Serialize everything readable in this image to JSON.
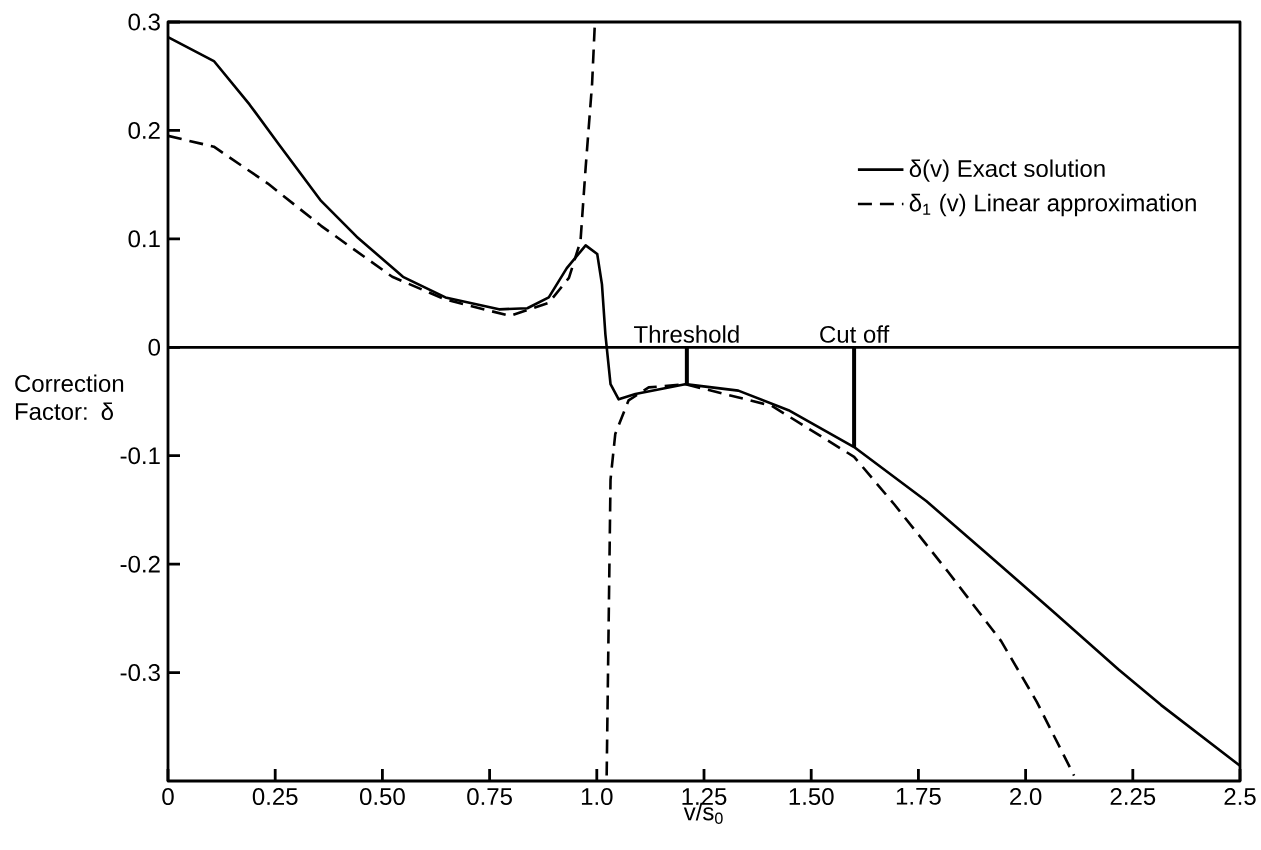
{
  "chart_data": {
    "type": "line",
    "xlabel": "v/s$_{0}$",
    "ylabel": "Correction Factor: δ",
    "xlim": [
      0,
      2.5
    ],
    "ylim": [
      -0.4,
      0.3
    ],
    "xticks": [
      0,
      {
        "value": 0.25,
        "label": "0.25"
      },
      {
        "value": 0.5,
        "label": "0.50"
      },
      {
        "value": 0.75,
        "label": "0.75"
      },
      {
        "value": 1,
        "label": "1.0"
      },
      {
        "value": 1.25,
        "label": "1.25"
      },
      {
        "value": 1.5,
        "label": "1.50"
      },
      {
        "value": 1.75,
        "label": "1.75"
      },
      {
        "value": 2,
        "label": "2.0"
      },
      {
        "value": 2.25,
        "label": "2.25"
      },
      2.5
    ],
    "yticks": [
      -0.3,
      -0.2,
      -0.1,
      0,
      0.1,
      0.2,
      0.3
    ],
    "grid": false,
    "legend": "top right",
    "marker": "none",
    "ref_lines": [
      {
        "axis": "y",
        "value": 0
      }
    ],
    "annotations": [
      {
        "text": "Threshold",
        "x": 1.21,
        "y": -0.034
      },
      {
        "text": "Cut off",
        "x": 1.6,
        "y": -0.092
      }
    ],
    "series": [
      {
        "name": "δ(v)  Exact solution",
        "color": "#000000",
        "line_style": "solid",
        "x": [
          0,
          0.107,
          0.19,
          0.257,
          0.357,
          0.44,
          0.548,
          0.647,
          0.772,
          0.838,
          0.888,
          0.93,
          0.974,
          1.001,
          1.012,
          1.02,
          1.032,
          1.051,
          1.09,
          1.206,
          1.33,
          1.447,
          1.6,
          1.769,
          1.9,
          2.068,
          2.216,
          2.316,
          2.487,
          2.5
        ],
        "values": [
          0.286,
          0.264,
          0.224,
          0.188,
          0.135,
          0.102,
          0.065,
          0.046,
          0.035,
          0.036,
          0.046,
          0.073,
          0.094,
          0.086,
          0.058,
          0.012,
          -0.034,
          -0.048,
          -0.043,
          -0.034,
          -0.04,
          -0.058,
          -0.092,
          -0.142,
          -0.187,
          -0.245,
          -0.297,
          -0.33,
          -0.382,
          -0.386
        ]
      },
      {
        "name": "δ$_{1}$ (v) Linear approximation",
        "color": "#000000",
        "line_style": "dashed",
        "x": [
          0,
          0.107,
          0.233,
          0.357,
          0.523,
          0.647,
          0.797,
          0.888,
          0.935,
          0.962,
          0.974,
          0.989,
          0.995,
          1.01,
          1.023,
          1.032,
          1.043,
          1.074,
          1.121,
          1.206,
          1.408,
          1.6,
          1.694,
          1.819,
          1.943,
          2.026,
          2.113
        ],
        "values": [
          0.195,
          0.185,
          0.151,
          0.112,
          0.065,
          0.044,
          0.029,
          0.041,
          0.064,
          0.098,
          0.166,
          0.243,
          0.295,
          null,
          -0.395,
          -0.122,
          -0.08,
          -0.049,
          -0.037,
          -0.034,
          -0.054,
          -0.101,
          -0.145,
          -0.207,
          -0.271,
          -0.327,
          -0.395
        ]
      }
    ]
  }
}
